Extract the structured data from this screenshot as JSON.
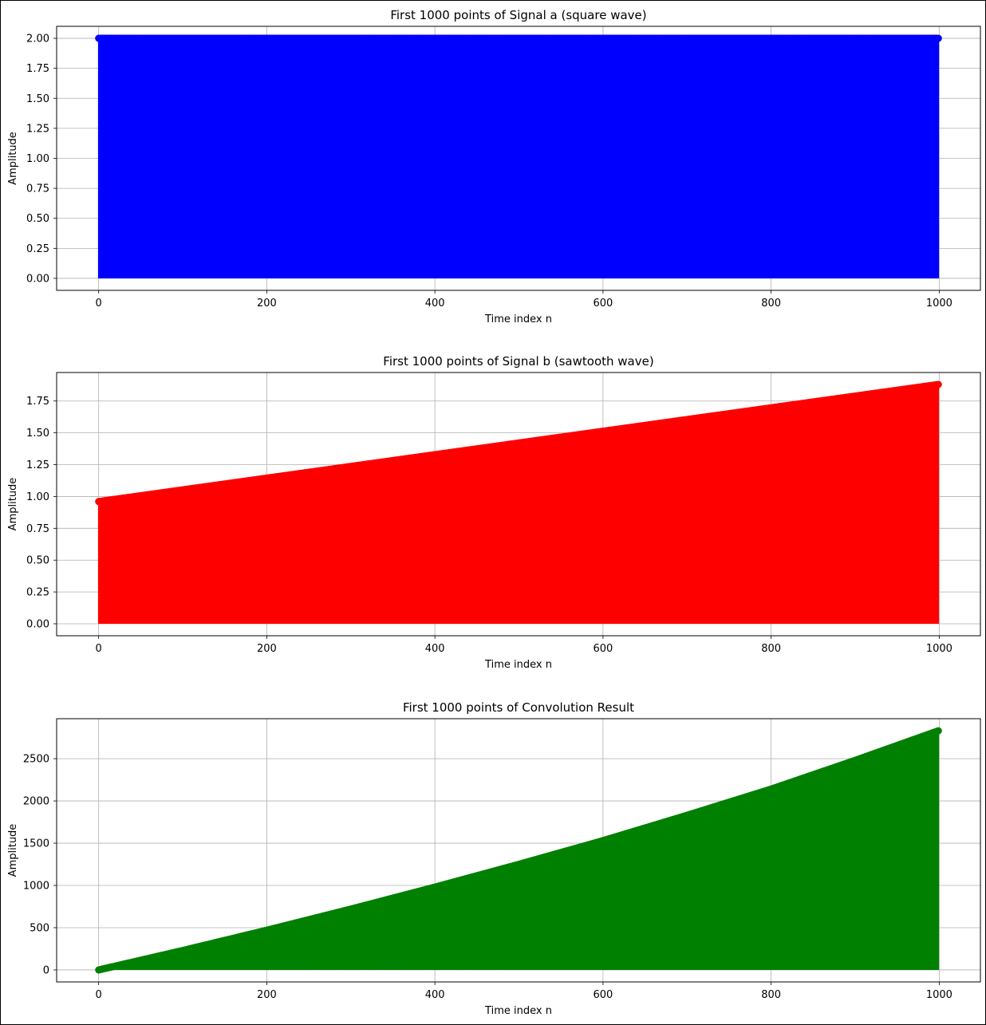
{
  "chart_data": [
    {
      "type": "stem",
      "title": "First 1000 points of Signal a (square wave)",
      "xlabel": "Time index n",
      "ylabel": "Amplitude",
      "color": "#0000ff",
      "x_range": [
        0,
        999
      ],
      "envelope": [
        [
          0,
          2.0
        ],
        [
          999,
          2.0
        ]
      ],
      "xlim": [
        -50,
        1049
      ],
      "ylim": [
        -0.1,
        2.1
      ],
      "xticks": [
        0,
        200,
        400,
        600,
        800,
        1000
      ],
      "yticks": [
        "0.00",
        "0.25",
        "0.50",
        "0.75",
        "1.00",
        "1.25",
        "1.50",
        "1.75",
        "2.00"
      ],
      "grid": true
    },
    {
      "type": "stem",
      "title": "First 1000 points of Signal b (sawtooth wave)",
      "xlabel": "Time index n",
      "ylabel": "Amplitude",
      "color": "#ff0000",
      "x_range": [
        0,
        999
      ],
      "envelope": [
        [
          0,
          0.96
        ],
        [
          999,
          1.88
        ]
      ],
      "xlim": [
        -50,
        1049
      ],
      "ylim": [
        -0.094,
        1.974
      ],
      "xticks": [
        0,
        200,
        400,
        600,
        800,
        1000
      ],
      "yticks": [
        "0.00",
        "0.25",
        "0.50",
        "0.75",
        "1.00",
        "1.25",
        "1.50",
        "1.75"
      ],
      "grid": true
    },
    {
      "type": "stem",
      "title": "First 1000 points of Convolution Result",
      "xlabel": "Time index n",
      "ylabel": "Amplitude",
      "color": "#008000",
      "x_range": [
        0,
        999
      ],
      "envelope": [
        [
          0,
          0
        ],
        [
          100,
          230
        ],
        [
          200,
          470
        ],
        [
          300,
          720
        ],
        [
          400,
          980
        ],
        [
          500,
          1250
        ],
        [
          600,
          1530
        ],
        [
          700,
          1830
        ],
        [
          800,
          2140
        ],
        [
          900,
          2480
        ],
        [
          999,
          2830
        ]
      ],
      "xlim": [
        -50,
        1049
      ],
      "ylim": [
        -142,
        2973
      ],
      "xticks": [
        0,
        200,
        400,
        600,
        800,
        1000
      ],
      "yticks": [
        "0",
        "500",
        "1000",
        "1500",
        "2000",
        "2500"
      ],
      "grid": true
    }
  ]
}
